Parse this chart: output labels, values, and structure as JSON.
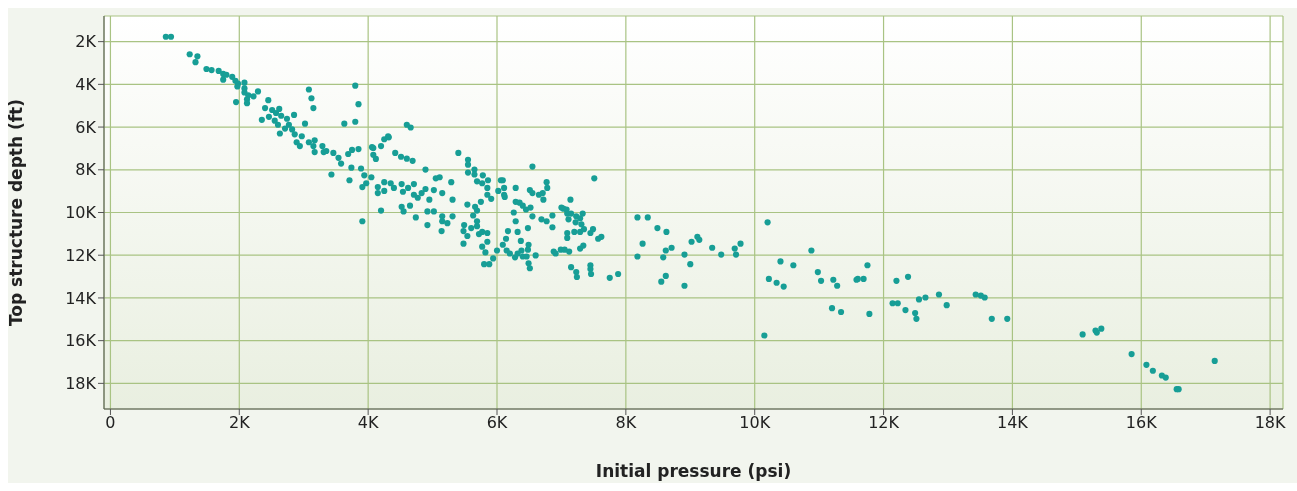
{
  "chart_data": {
    "type": "scatter",
    "xlabel": "Initial pressure (psi)",
    "ylabel": "Top structure depth (ft)",
    "xlim": [
      -100,
      18200
    ],
    "ylim": [
      19200,
      800
    ],
    "xticks": [
      0,
      {
        "value": 2000,
        "label": "2K"
      },
      {
        "value": 4000,
        "label": "4K"
      },
      {
        "value": 6000,
        "label": "6K"
      },
      {
        "value": 8000,
        "label": "8K"
      },
      {
        "value": 10000,
        "label": "10K"
      },
      {
        "value": 12000,
        "label": "12K"
      },
      {
        "value": 14000,
        "label": "14K"
      },
      {
        "value": 16000,
        "label": "16K"
      },
      {
        "value": 18000,
        "label": "18K"
      }
    ],
    "yticks": [
      {
        "value": 2000,
        "label": "2K"
      },
      {
        "value": 4000,
        "label": "4K"
      },
      {
        "value": 6000,
        "label": "6K"
      },
      {
        "value": 8000,
        "label": "8K"
      },
      {
        "value": 10000,
        "label": "10K"
      },
      {
        "value": 12000,
        "label": "12K"
      },
      {
        "value": 14000,
        "label": "14K"
      },
      {
        "value": 16000,
        "label": "16K"
      },
      {
        "value": 18000,
        "label": "18K"
      }
    ],
    "grid": true,
    "legend": false,
    "marker": "circle",
    "series": [
      {
        "color": "#179e96",
        "x": [
          860,
          940,
          1230,
          1350,
          1320,
          1490,
          1570,
          1680,
          1750,
          1800,
          1750,
          1890,
          1940,
          1980,
          1970,
          2080,
          2080,
          2080,
          2140,
          2120,
          1950,
          2120,
          2220,
          2290,
          2450,
          2400,
          2350,
          2460,
          2510,
          2570,
          2620,
          2650,
          2550,
          2600,
          2740,
          2850,
          2770,
          2710,
          2820,
          2630,
          2860,
          2970,
          3020,
          2890,
          2940,
          3080,
          3170,
          3150,
          3170,
          3290,
          3310,
          3350,
          3460,
          3080,
          3120,
          3150,
          3800,
          3850,
          3800,
          3630,
          3430,
          3710,
          3540,
          3690,
          3850,
          3750,
          3580,
          3740,
          3890,
          3940,
          3970,
          3910,
          4050,
          4150,
          4080,
          4120,
          4200,
          4250,
          4310,
          4150,
          4250,
          4600,
          4660,
          4320,
          4060,
          4080,
          4420,
          4510,
          4600,
          4690,
          4890,
          4250,
          4350,
          4520,
          4710,
          4620,
          4400,
          4540,
          4710,
          4830,
          4890,
          5020,
          5150,
          5050,
          5110,
          5290,
          4950,
          4770,
          4650,
          4520,
          4200,
          4550,
          4740,
          4920,
          4920,
          5020,
          5150,
          5150,
          5140,
          5230,
          5310,
          5310,
          5400,
          5550,
          5550,
          5550,
          5650,
          5650,
          5780,
          5690,
          5770,
          5860,
          5850,
          5850,
          5910,
          5750,
          5690,
          5660,
          5540,
          5630,
          5690,
          5690,
          5720,
          5770,
          5850,
          5850,
          5770,
          5820,
          5800,
          5880,
          5940,
          6000,
          5540,
          5480,
          5480,
          5490,
          5600,
          6020,
          6060,
          6090,
          6110,
          6110,
          6120,
          6260,
          6290,
          6170,
          6140,
          6090,
          6150,
          6200,
          6280,
          6320,
          6370,
          6380,
          6320,
          6400,
          6460,
          6480,
          6490,
          6490,
          6510,
          6600,
          6480,
          6550,
          6290,
          6350,
          6400,
          6450,
          6520,
          6510,
          6550,
          6290,
          6550,
          6650,
          6710,
          6720,
          6770,
          6780,
          6690,
          6770,
          6860,
          6860,
          6880,
          6910,
          6990,
          7050,
          7120,
          7000,
          7030,
          7080,
          7090,
          7150,
          7140,
          7110,
          7230,
          7290,
          7330,
          7220,
          7310,
          7200,
          7290,
          7350,
          7450,
          7490,
          7090,
          7090,
          7290,
          7340,
          7150,
          7230,
          7240,
          7450,
          7450,
          7460,
          7570,
          7620,
          7750,
          7880,
          7510,
          3910,
          8180,
          8340,
          8490,
          8630,
          8260,
          8180,
          8580,
          8620,
          8710,
          8620,
          8550,
          8910,
          8910,
          9000,
          9020,
          9110,
          9140,
          9340,
          9480,
          9690,
          9780,
          9710,
          10200,
          10150,
          10400,
          10220,
          10340,
          10450,
          10600,
          10880,
          10980,
          11030,
          11220,
          11280,
          11200,
          11340,
          11580,
          11600,
          11690,
          11750,
          11780,
          12200,
          12380,
          12140,
          12220,
          12340,
          12490,
          12510,
          12550,
          12650,
          12860,
          12980,
          13430,
          13510,
          13570,
          13680,
          13920,
          15090,
          15290,
          15310,
          15380,
          15850,
          16080,
          16180,
          16320,
          16380,
          16550,
          16580,
          17140
        ],
        "values": [
          1770,
          1770,
          2590,
          2690,
          2960,
          3280,
          3330,
          3370,
          3510,
          3550,
          3780,
          3650,
          3830,
          3970,
          4100,
          3920,
          4190,
          4380,
          4510,
          4700,
          4830,
          4880,
          4560,
          4330,
          4740,
          5110,
          5660,
          5520,
          5200,
          5340,
          5150,
          5470,
          5700,
          5890,
          5610,
          5430,
          5890,
          6070,
          6110,
          6300,
          6340,
          6430,
          5840,
          6710,
          6890,
          6710,
          6620,
          6890,
          7170,
          6890,
          7170,
          7120,
          7210,
          4240,
          4650,
          5110,
          4060,
          4930,
          5750,
          5840,
          8220,
          8490,
          7440,
          7260,
          7030,
          7070,
          7710,
          7900,
          7940,
          8260,
          8630,
          8810,
          8350,
          8810,
          6980,
          7490,
          6890,
          6570,
          6430,
          9090,
          8990,
          5890,
          6020,
          6480,
          6940,
          7300,
          7210,
          7390,
          7480,
          7580,
          7990,
          8580,
          8630,
          8670,
          8670,
          8850,
          8850,
          9030,
          9170,
          9090,
          8900,
          8950,
          9090,
          8400,
          8350,
          8580,
          9400,
          9310,
          9680,
          9730,
          9910,
          9950,
          10230,
          9950,
          10590,
          9950,
          10180,
          10410,
          10870,
          10500,
          10180,
          9400,
          7210,
          7530,
          7760,
          8130,
          7990,
          8220,
          8260,
          8540,
          8630,
          8490,
          8850,
          9170,
          9360,
          9500,
          9910,
          9730,
          9630,
          10140,
          10410,
          10640,
          11010,
          10910,
          10960,
          11370,
          11600,
          11870,
          12420,
          12420,
          12150,
          11780,
          11100,
          11460,
          10870,
          10590,
          10730,
          8990,
          8490,
          8490,
          8850,
          9170,
          9270,
          10000,
          10410,
          10870,
          11230,
          11510,
          11780,
          11920,
          12100,
          10910,
          11330,
          11780,
          11920,
          12060,
          12060,
          11740,
          11510,
          12380,
          12610,
          12010,
          10730,
          10180,
          9500,
          9540,
          9680,
          9860,
          9770,
          8950,
          9090,
          8850,
          7850,
          9170,
          9090,
          9400,
          8580,
          8850,
          10320,
          10410,
          10140,
          10690,
          11830,
          11920,
          11740,
          11740,
          11830,
          9770,
          9820,
          9860,
          10050,
          10050,
          9400,
          10320,
          10180,
          10270,
          10050,
          10460,
          10550,
          10910,
          10910,
          10780,
          10960,
          10780,
          10960,
          11190,
          11690,
          11550,
          12560,
          12790,
          13020,
          12470,
          12650,
          12880,
          11230,
          11140,
          13060,
          12880,
          8400,
          10410,
          10230,
          10230,
          10730,
          10910,
          11460,
          12060,
          12100,
          11780,
          11650,
          12970,
          13240,
          13430,
          11970,
          12420,
          11370,
          11140,
          11280,
          11650,
          11970,
          11690,
          11460,
          11970,
          10460,
          15760,
          12290,
          13110,
          13290,
          13470,
          12470,
          11780,
          12790,
          13200,
          13150,
          13430,
          14480,
          14660,
          13150,
          13110,
          13110,
          12470,
          14750,
          13200,
          13010,
          14250,
          14250,
          14570,
          14710,
          14980,
          14070,
          13980,
          13840,
          14340,
          13840,
          13890,
          13980,
          14980,
          14980,
          15710,
          15530,
          15620,
          15440,
          16630,
          17130,
          17410,
          17630,
          17730,
          18270,
          18270,
          16950
        ]
      }
    ]
  }
}
